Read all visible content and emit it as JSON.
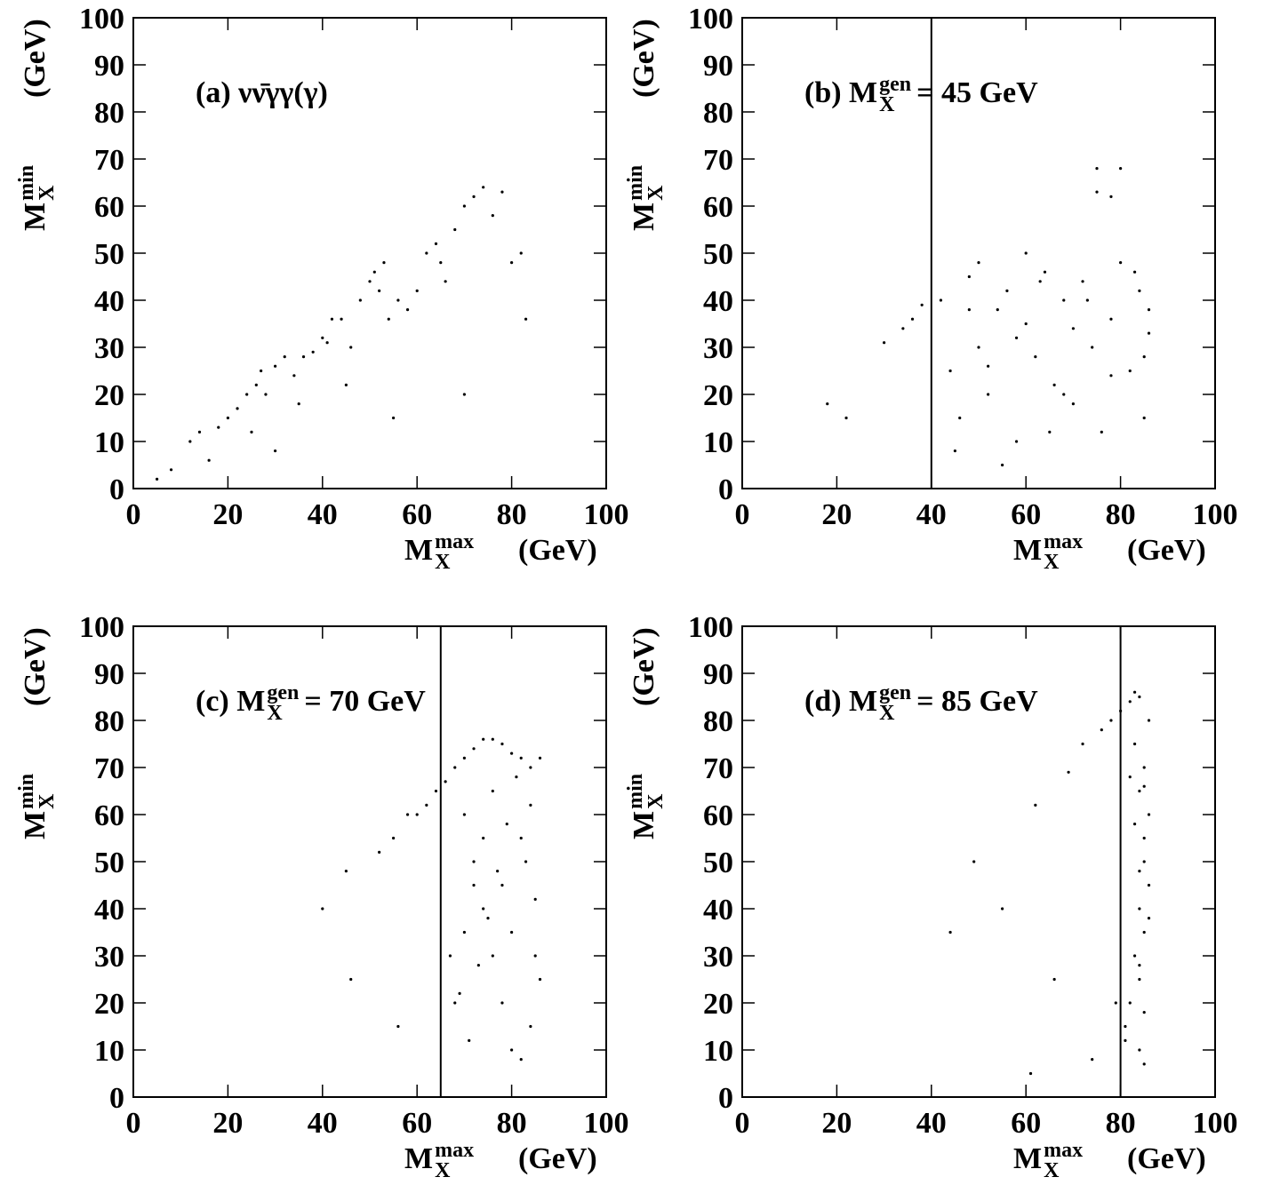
{
  "chart_data": [
    {
      "type": "scatter",
      "color": "#000000",
      "title": {
        "prefix": "(a) νν̄γγ(γ)"
      },
      "xlabel": {
        "prefix": "M",
        "sup": "max",
        "sub": "X",
        "suffix": "(GeV)"
      },
      "ylabel": {
        "prefix": "M",
        "sup": "min",
        "sub": "X",
        "suffix": "(GeV)"
      },
      "xlim": [
        0,
        100
      ],
      "ylim": [
        0,
        100
      ],
      "xticks": [
        0,
        20,
        40,
        60,
        80,
        100
      ],
      "yticks": [
        0,
        10,
        20,
        30,
        40,
        50,
        60,
        70,
        80,
        90,
        100
      ],
      "x": [
        5,
        8,
        12,
        14,
        16,
        18,
        20,
        22,
        24,
        26,
        27,
        28,
        30,
        32,
        34,
        36,
        38,
        40,
        41,
        42,
        44,
        46,
        48,
        50,
        51,
        52,
        53,
        54,
        56,
        58,
        60,
        62,
        64,
        65,
        66,
        68,
        70,
        72,
        74,
        76,
        78,
        80,
        82,
        83,
        35,
        45,
        55,
        30,
        25,
        70
      ],
      "values": [
        2,
        4,
        10,
        12,
        6,
        13,
        15,
        17,
        20,
        22,
        25,
        20,
        26,
        28,
        24,
        28,
        29,
        32,
        31,
        36,
        36,
        30,
        40,
        44,
        46,
        42,
        48,
        36,
        40,
        38,
        42,
        50,
        52,
        48,
        44,
        55,
        60,
        62,
        64,
        58,
        63,
        48,
        50,
        36,
        18,
        22,
        15,
        8,
        12,
        20
      ]
    },
    {
      "type": "scatter",
      "color": "#000000",
      "title": {
        "prefix": "(b) M",
        "sup": "gen",
        "sub": "X",
        "suffix": "= 45 GeV"
      },
      "xlabel": {
        "prefix": "M",
        "sup": "max",
        "sub": "X",
        "suffix": "(GeV)"
      },
      "ylabel": {
        "prefix": "M",
        "sup": "min",
        "sub": "X",
        "suffix": "(GeV)"
      },
      "xlim": [
        0,
        100
      ],
      "ylim": [
        0,
        100
      ],
      "xticks": [
        0,
        20,
        40,
        60,
        80,
        100
      ],
      "yticks": [
        0,
        10,
        20,
        30,
        40,
        50,
        60,
        70,
        80,
        90,
        100
      ],
      "vline": 40,
      "x": [
        18,
        22,
        30,
        34,
        36,
        38,
        42,
        44,
        46,
        48,
        50,
        52,
        54,
        56,
        58,
        60,
        62,
        64,
        66,
        68,
        70,
        72,
        74,
        76,
        78,
        80,
        82,
        84,
        85,
        86,
        45,
        50,
        55,
        60,
        65,
        70,
        75,
        80,
        85,
        48,
        52,
        58,
        63,
        68,
        73,
        78,
        83,
        86,
        75,
        78
      ],
      "values": [
        18,
        15,
        31,
        34,
        36,
        39,
        40,
        25,
        15,
        45,
        30,
        20,
        38,
        42,
        10,
        35,
        28,
        46,
        22,
        40,
        18,
        44,
        30,
        12,
        36,
        48,
        25,
        42,
        15,
        33,
        8,
        48,
        5,
        50,
        12,
        34,
        68,
        68,
        28,
        38,
        26,
        32,
        44,
        20,
        40,
        24,
        46,
        38,
        63,
        62
      ]
    },
    {
      "type": "scatter",
      "color": "#000000",
      "title": {
        "prefix": "(c) M",
        "sup": "gen",
        "sub": "X",
        "suffix": "= 70 GeV"
      },
      "xlabel": {
        "prefix": "M",
        "sup": "max",
        "sub": "X",
        "suffix": "(GeV)"
      },
      "ylabel": {
        "prefix": "M",
        "sup": "min",
        "sub": "X",
        "suffix": "(GeV)"
      },
      "xlim": [
        0,
        100
      ],
      "ylim": [
        0,
        100
      ],
      "xticks": [
        0,
        20,
        40,
        60,
        80,
        100
      ],
      "yticks": [
        0,
        10,
        20,
        30,
        40,
        50,
        60,
        70,
        80,
        90,
        100
      ],
      "vline": 65,
      "x": [
        40,
        46,
        52,
        55,
        58,
        60,
        62,
        64,
        66,
        68,
        70,
        72,
        74,
        76,
        78,
        80,
        82,
        84,
        86,
        70,
        72,
        74,
        76,
        78,
        80,
        82,
        84,
        86,
        68,
        70,
        72,
        74,
        76,
        78,
        80,
        82,
        84,
        85,
        67,
        69,
        71,
        73,
        75,
        77,
        79,
        81,
        83,
        85,
        56,
        45
      ],
      "values": [
        40,
        25,
        52,
        55,
        60,
        60,
        62,
        65,
        67,
        70,
        72,
        74,
        76,
        76,
        75,
        73,
        72,
        70,
        72,
        60,
        50,
        40,
        30,
        20,
        10,
        8,
        15,
        25,
        20,
        35,
        45,
        55,
        65,
        45,
        35,
        55,
        62,
        42,
        30,
        22,
        12,
        28,
        38,
        48,
        58,
        68,
        50,
        30,
        15,
        48
      ]
    },
    {
      "type": "scatter",
      "color": "#000000",
      "title": {
        "prefix": "(d) M",
        "sup": "gen",
        "sub": "X",
        "suffix": "= 85 GeV"
      },
      "xlabel": {
        "prefix": "M",
        "sup": "max",
        "sub": "X",
        "suffix": "(GeV)"
      },
      "ylabel": {
        "prefix": "M",
        "sup": "min",
        "sub": "X",
        "suffix": "(GeV)"
      },
      "xlim": [
        0,
        100
      ],
      "ylim": [
        0,
        100
      ],
      "xticks": [
        0,
        20,
        40,
        60,
        80,
        100
      ],
      "yticks": [
        0,
        10,
        20,
        30,
        40,
        50,
        60,
        70,
        80,
        90,
        100
      ],
      "vline": 80,
      "x": [
        44,
        49,
        55,
        61,
        62,
        66,
        69,
        72,
        74,
        76,
        78,
        79,
        80,
        81,
        82,
        83,
        84,
        85,
        86,
        85,
        84,
        83,
        82,
        81,
        84,
        85,
        86,
        85,
        84,
        83,
        85,
        84,
        86,
        85,
        84,
        83,
        82,
        85,
        86,
        84
      ],
      "values": [
        35,
        50,
        40,
        5,
        62,
        25,
        69,
        75,
        8,
        78,
        80,
        20,
        82,
        12,
        84,
        86,
        85,
        70,
        60,
        50,
        40,
        30,
        20,
        15,
        10,
        7,
        45,
        55,
        65,
        75,
        35,
        25,
        80,
        18,
        48,
        58,
        68,
        66,
        38,
        28
      ]
    }
  ]
}
